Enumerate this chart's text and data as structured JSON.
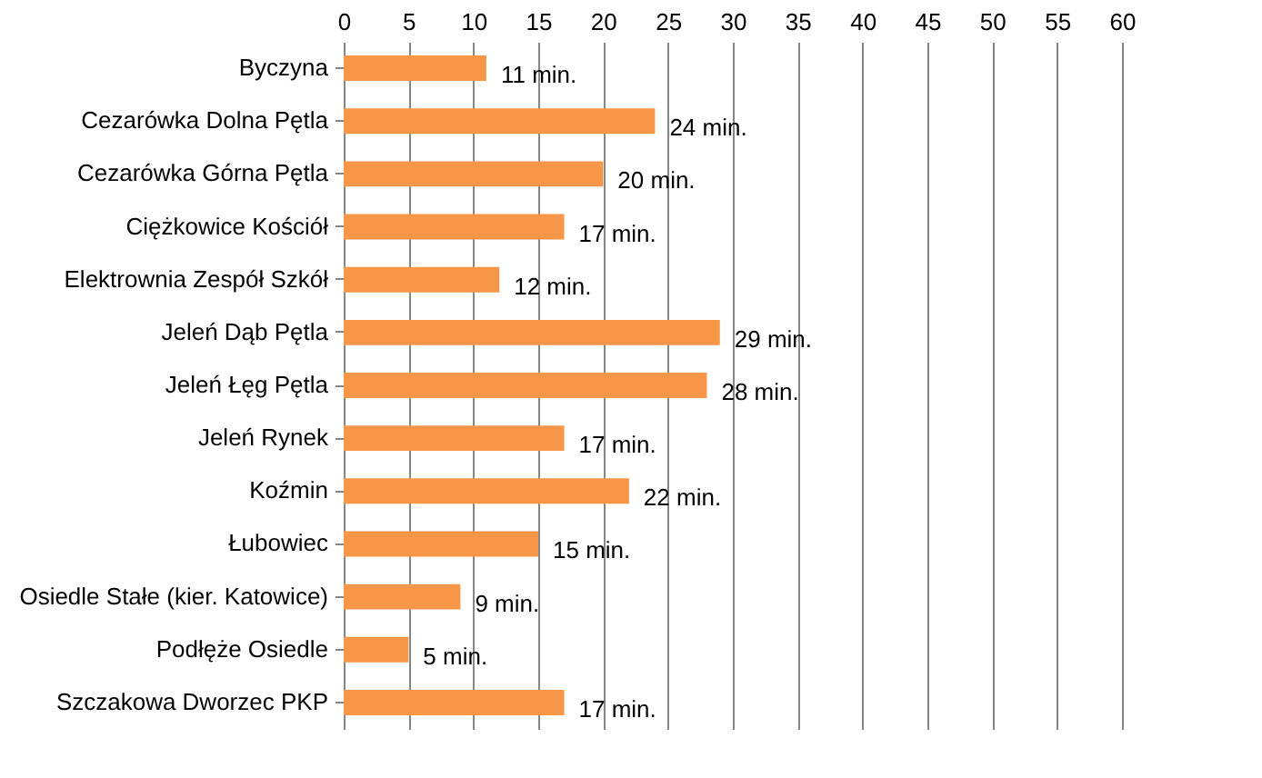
{
  "chart_data": {
    "type": "bar",
    "orientation": "horizontal",
    "categories": [
      "Byczyna",
      "Cezarówka Dolna Pętla",
      "Cezarówka Górna Pętla",
      "Ciężkowice Kościół",
      "Elektrownia Zespół Szkół",
      "Jeleń Dąb Pętla",
      "Jeleń Łęg Pętla",
      "Jeleń Rynek",
      "Koźmin",
      "Łubowiec",
      "Osiedle Stałe (kier. Katowice)",
      "Podłęże Osiedle",
      "Szczakowa Dworzec PKP"
    ],
    "values": [
      11,
      24,
      20,
      17,
      12,
      29,
      28,
      17,
      22,
      15,
      9,
      5,
      17
    ],
    "value_labels": [
      "11 min.",
      "24 min.",
      "20 min.",
      "17 min.",
      "12 min.",
      "29 min.",
      "28 min.",
      "17 min.",
      "22 min.",
      "15 min.",
      "9 min.",
      "5 min.",
      "17 min."
    ],
    "color": "#f79646",
    "xlim": [
      0,
      60
    ],
    "xticks": [
      0,
      5,
      10,
      15,
      20,
      25,
      30,
      35,
      40,
      45,
      50,
      55,
      60
    ],
    "grid": "x"
  }
}
